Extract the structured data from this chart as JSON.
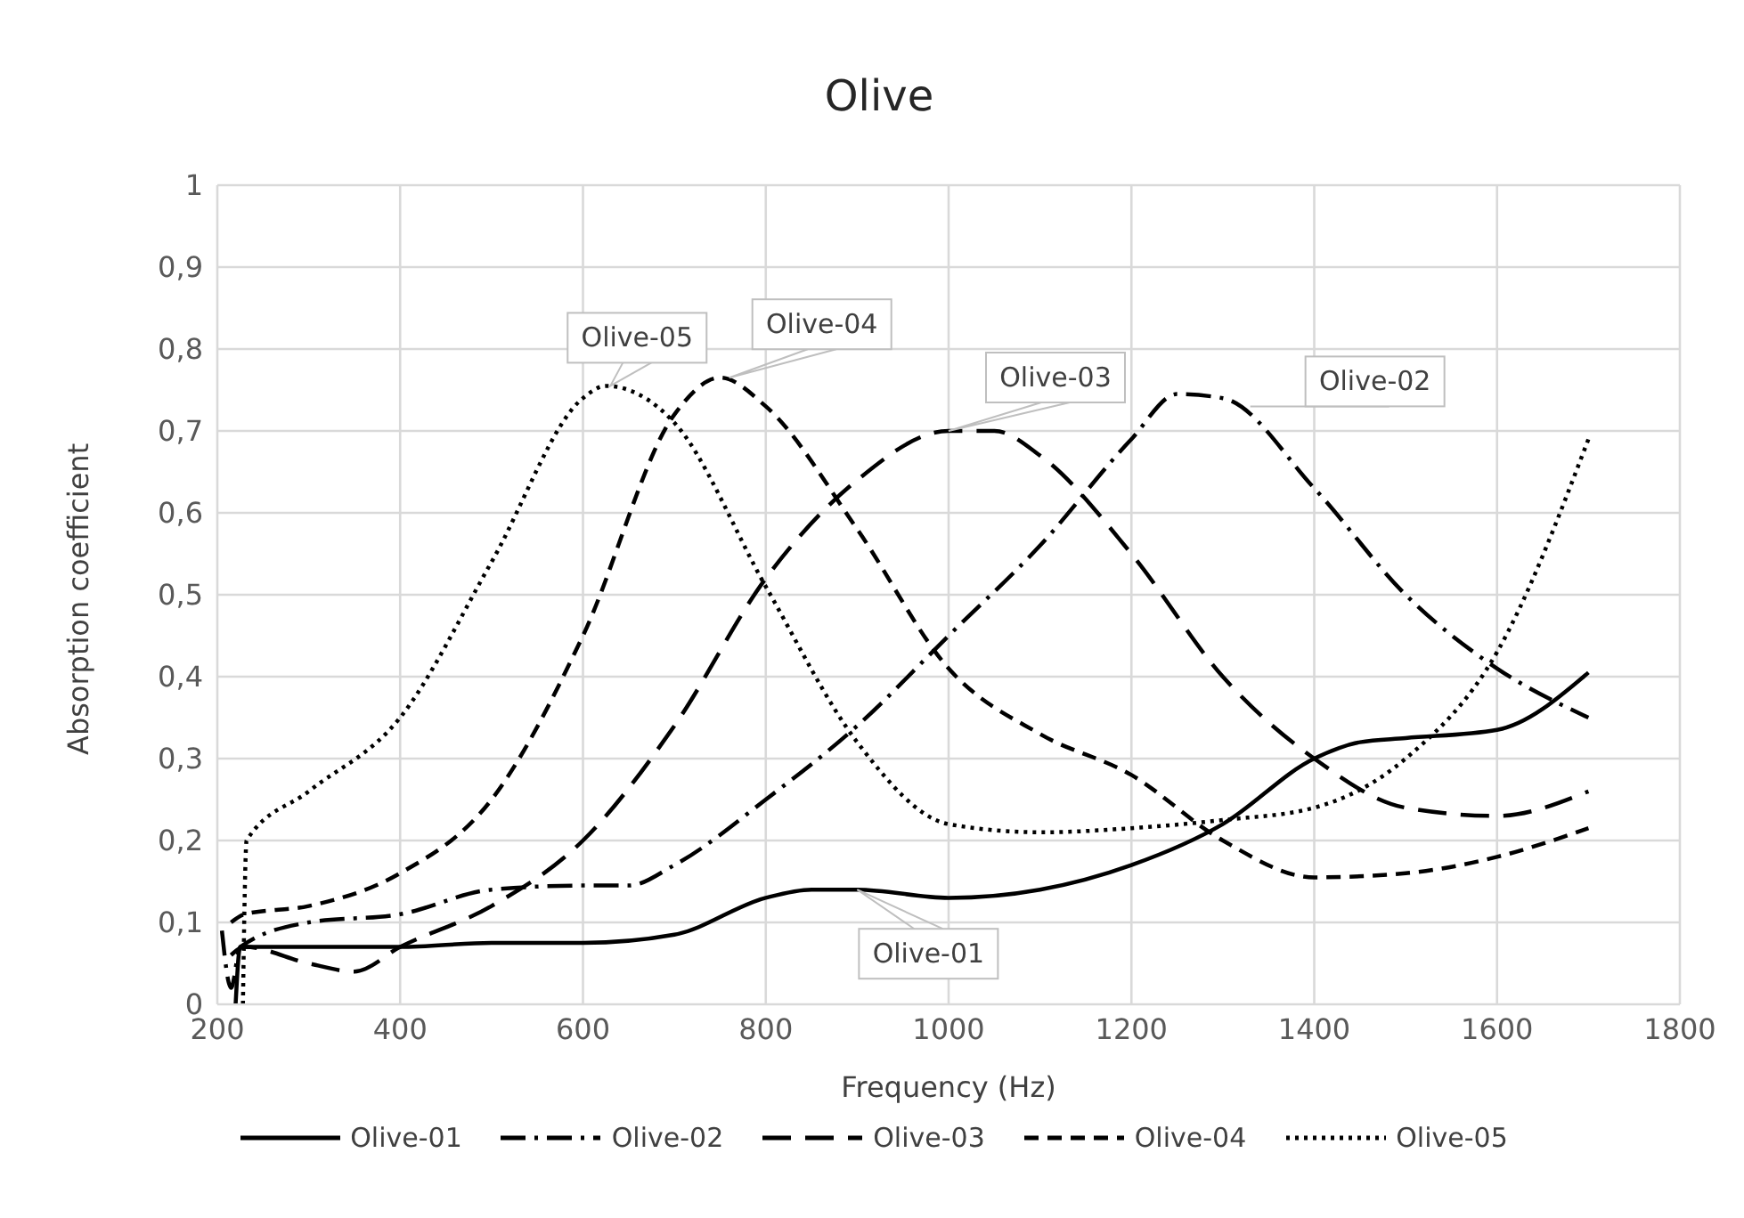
{
  "chart_data": {
    "type": "line",
    "title": "Olive",
    "xlabel": "Frequency (Hz)",
    "ylabel": "Absorption coefficient",
    "xlim": [
      200,
      1800
    ],
    "xticks": [
      200,
      400,
      600,
      800,
      1000,
      1200,
      1400,
      1600,
      1800
    ],
    "ylim": [
      0,
      1
    ],
    "yticks": [
      0,
      {
        "value": 0.1,
        "label": "0,1"
      },
      {
        "value": 0.2,
        "label": "0,2"
      },
      {
        "value": 0.3,
        "label": "0,3"
      },
      {
        "value": 0.4,
        "label": "0,4"
      },
      {
        "value": 0.5,
        "label": "0,5"
      },
      {
        "value": 0.6,
        "label": "0,6"
      },
      {
        "value": 0.7,
        "label": "0,7"
      },
      {
        "value": 0.8,
        "label": "0,8"
      },
      {
        "value": 0.9,
        "label": "0,9"
      },
      1
    ],
    "grid": true,
    "legend": "bottom",
    "marker": "none",
    "series": [
      {
        "name": "Olive-01",
        "color": "#000000",
        "line_style": "solid",
        "x": [
          220,
          225,
          300,
          400,
          500,
          600,
          700,
          800,
          850,
          900,
          1000,
          1100,
          1200,
          1300,
          1400,
          1450,
          1500,
          1600,
          1700
        ],
        "values": [
          0,
          0.07,
          0.07,
          0.07,
          0.075,
          0.075,
          0.085,
          0.13,
          0.14,
          0.14,
          0.13,
          0.14,
          0.17,
          0.22,
          0.3,
          0.32,
          0.325,
          0.335,
          0.405
        ]
      },
      {
        "name": "Olive-02",
        "color": "#000000",
        "line_style": "dashdot",
        "x": [
          205,
          215,
          225,
          300,
          400,
          500,
          600,
          650,
          700,
          800,
          900,
          1000,
          1100,
          1200,
          1250,
          1300,
          1400,
          1500,
          1600,
          1700
        ],
        "values": [
          0.09,
          0.02,
          0.07,
          0.1,
          0.11,
          0.14,
          0.145,
          0.145,
          0.17,
          0.25,
          0.34,
          0.45,
          0.56,
          0.69,
          0.745,
          0.74,
          0.63,
          0.5,
          0.41,
          0.35
        ]
      },
      {
        "name": "Olive-03",
        "color": "#000000",
        "line_style": "longdash",
        "x": [
          215,
          230,
          300,
          350,
          400,
          500,
          600,
          700,
          800,
          900,
          1000,
          1050,
          1100,
          1200,
          1300,
          1400,
          1500,
          1600,
          1700
        ],
        "values": [
          0.06,
          0.07,
          0.05,
          0.04,
          0.07,
          0.12,
          0.2,
          0.34,
          0.52,
          0.64,
          0.7,
          0.7,
          0.67,
          0.55,
          0.4,
          0.3,
          0.24,
          0.23,
          0.26
        ]
      },
      {
        "name": "Olive-04",
        "color": "#000000",
        "line_style": "dashed",
        "x": [
          215,
          230,
          300,
          400,
          500,
          600,
          700,
          750,
          800,
          900,
          1000,
          1100,
          1200,
          1300,
          1400,
          1500,
          1600,
          1700
        ],
        "values": [
          0.1,
          0.11,
          0.12,
          0.16,
          0.25,
          0.45,
          0.72,
          0.765,
          0.73,
          0.58,
          0.41,
          0.33,
          0.28,
          0.2,
          0.155,
          0.16,
          0.18,
          0.215
        ]
      },
      {
        "name": "Olive-05",
        "color": "#000000",
        "line_style": "dotted",
        "x": [
          228,
          232,
          300,
          400,
          500,
          600,
          625,
          700,
          800,
          900,
          1000,
          1100,
          1200,
          1300,
          1400,
          1500,
          1600,
          1700
        ],
        "values": [
          0,
          0.2,
          0.26,
          0.35,
          0.54,
          0.74,
          0.755,
          0.71,
          0.51,
          0.32,
          0.22,
          0.21,
          0.215,
          0.225,
          0.24,
          0.3,
          0.43,
          0.69
        ]
      }
    ],
    "annotations": [
      {
        "text": "Olive-05",
        "x": 630,
        "y": 0.755
      },
      {
        "text": "Olive-04",
        "x": 760,
        "y": 0.765
      },
      {
        "text": "Olive-03",
        "x": 1000,
        "y": 0.7
      },
      {
        "text": "Olive-02",
        "x": 1330,
        "y": 0.73
      },
      {
        "text": "Olive-01",
        "x": 900,
        "y": 0.14
      }
    ]
  }
}
